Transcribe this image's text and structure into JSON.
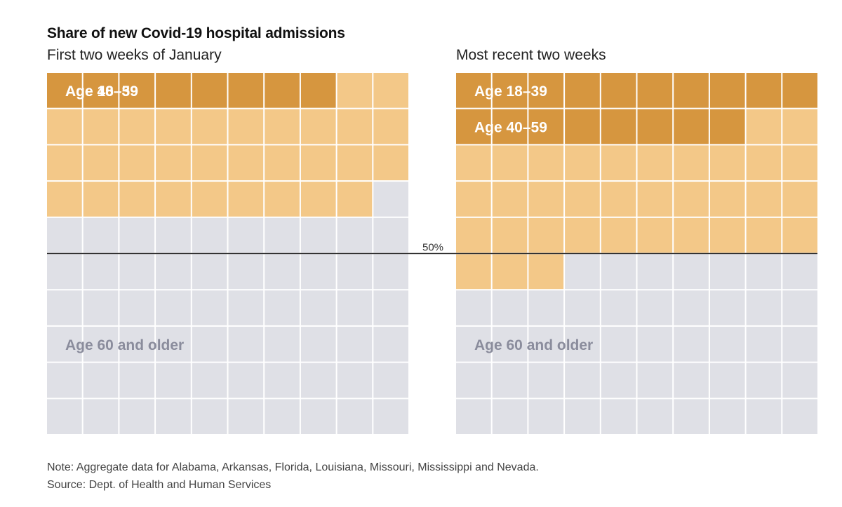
{
  "chart_data": {
    "type": "waffle",
    "title": "Share of new Covid-19 hospital admissions",
    "units_per_square": 1,
    "total_squares": 100,
    "grid": {
      "columns": 10,
      "rows": 10
    },
    "colors": {
      "age_18_39": "#d6963f",
      "age_40_59": "#f3c888",
      "age_60_plus": "#dfe0e6",
      "label_light": "#ffffff",
      "label_grey": "#8a8c9c",
      "reference_line": "#333333"
    },
    "reference_line": {
      "value": 50,
      "label": "50%"
    },
    "panels": [
      {
        "title": "First two weeks of January",
        "segments": [
          {
            "name": "Age 18–39",
            "value": 8
          },
          {
            "name": "Age 40–59",
            "value": 31
          },
          {
            "name": "Age 60 and older",
            "value": 61
          }
        ]
      },
      {
        "title": "Most recent two weeks",
        "segments": [
          {
            "name": "Age 18–39",
            "value": 18
          },
          {
            "name": "Age 40–59",
            "value": 35
          },
          {
            "name": "Age 60 and older",
            "value": 47
          }
        ]
      }
    ]
  },
  "note": "Note: Aggregate data for Alabama, Arkansas, Florida, Louisiana, Missouri, Mississippi and Nevada.",
  "source": "Source: Dept. of Health and Human Services"
}
